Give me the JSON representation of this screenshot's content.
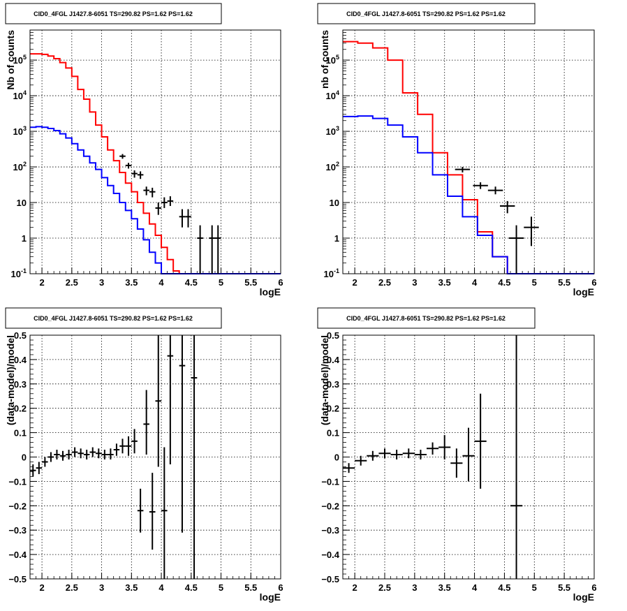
{
  "chart_data": [
    {
      "type": "line",
      "title": "CID0_4FGL J1427.8-6051 TS=290.82 PS=1.62 PS=1.62",
      "xlabel": "logE",
      "ylabel": "Nb of counts",
      "xlim": [
        1.8,
        6.0
      ],
      "ylim": [
        0.1,
        700000
      ],
      "yscale": "log",
      "grid": true,
      "x_ticks": [
        "2",
        "2.5",
        "3",
        "3.5",
        "4",
        "4.5",
        "5",
        "5.5",
        "6"
      ],
      "y_ticks": [
        {
          "value": 0.1,
          "base": "10",
          "exp": "-1"
        },
        {
          "value": 1,
          "base": "1",
          "exp": ""
        },
        {
          "value": 10,
          "base": "10",
          "exp": ""
        },
        {
          "value": 100,
          "base": "10",
          "exp": "2"
        },
        {
          "value": 1000,
          "base": "10",
          "exp": "3"
        },
        {
          "value": 10000,
          "base": "10",
          "exp": "4"
        },
        {
          "value": 100000,
          "base": "10",
          "exp": "5"
        }
      ],
      "bin_edges": [
        1.8,
        1.9,
        2.0,
        2.1,
        2.2,
        2.3,
        2.4,
        2.5,
        2.6,
        2.7,
        2.8,
        2.9,
        3.0,
        3.1,
        3.2,
        3.3,
        3.4,
        3.5,
        3.6,
        3.7,
        3.8,
        3.9,
        4.0,
        4.1,
        4.2,
        4.3,
        4.4,
        4.5,
        4.6,
        4.7,
        4.8,
        4.9,
        5.0,
        5.1,
        5.2,
        5.3,
        5.4,
        5.5,
        5.6,
        5.7,
        5.8,
        5.9,
        6.0
      ],
      "series": [
        {
          "color": "#ff0000",
          "style": "step",
          "values": [
            150000,
            150000,
            145000,
            130000,
            110000,
            85000,
            60000,
            35000,
            15000,
            8000,
            3500,
            1500,
            700,
            300,
            150,
            70,
            35,
            20,
            10,
            5,
            2.5,
            1.2,
            0.55,
            0.25,
            0.12,
            0.1,
            0.1,
            0.1,
            0.1,
            0.1,
            0.1,
            0.1,
            0.1,
            0.1,
            0.1,
            0.1,
            0.1,
            0.1,
            0.1,
            0.1,
            0.1,
            0.1
          ]
        },
        {
          "color": "#0000ff",
          "style": "step",
          "values": [
            1300,
            1350,
            1300,
            1200,
            1050,
            850,
            650,
            450,
            300,
            200,
            130,
            85,
            50,
            30,
            18,
            10,
            6,
            3.5,
            1.8,
            0.9,
            0.4,
            0.2,
            0.1,
            0.1,
            0.1,
            0.1,
            0.1,
            0.1,
            0.1,
            0.1,
            0.1,
            0.1,
            0.1,
            0.1,
            0.1,
            0.1,
            0.1,
            0.1,
            0.1,
            0.1,
            0.1,
            0.1
          ]
        }
      ],
      "data_points": [
        {
          "x": 3.35,
          "y": 200,
          "xerr": 0.05,
          "ylo": 170,
          "yhi": 230
        },
        {
          "x": 3.45,
          "y": 110,
          "xerr": 0.05,
          "ylo": 90,
          "yhi": 130
        },
        {
          "x": 3.55,
          "y": 65,
          "xerr": 0.05,
          "ylo": 50,
          "yhi": 80
        },
        {
          "x": 3.65,
          "y": 60,
          "xerr": 0.05,
          "ylo": 46,
          "yhi": 75
        },
        {
          "x": 3.75,
          "y": 22,
          "xerr": 0.05,
          "ylo": 16,
          "yhi": 28
        },
        {
          "x": 3.85,
          "y": 20,
          "xerr": 0.05,
          "ylo": 14,
          "yhi": 26
        },
        {
          "x": 3.95,
          "y": 7,
          "xerr": 0.05,
          "ylo": 4.5,
          "yhi": 10
        },
        {
          "x": 4.05,
          "y": 10,
          "xerr": 0.05,
          "ylo": 7,
          "yhi": 14
        },
        {
          "x": 4.15,
          "y": 11,
          "xerr": 0.05,
          "ylo": 8,
          "yhi": 15
        },
        {
          "x": 4.35,
          "y": 4,
          "xerr": 0.05,
          "ylo": 2,
          "yhi": 6.5
        },
        {
          "x": 4.45,
          "y": 4,
          "xerr": 0.05,
          "ylo": 2,
          "yhi": 6.5
        },
        {
          "x": 4.65,
          "y": 1,
          "xerr": 0.05,
          "ylo": 0.1,
          "yhi": 2.3
        },
        {
          "x": 4.85,
          "y": 1,
          "xerr": 0.05,
          "ylo": 0.1,
          "yhi": 2.3
        },
        {
          "x": 4.95,
          "y": 1,
          "xerr": 0.05,
          "ylo": 0.1,
          "yhi": 2.3
        }
      ]
    },
    {
      "type": "line",
      "title": "CID0_4FGL J1427.8-6051 TS=290.82 PS=1.62 PS=1.62",
      "xlabel": "logE",
      "ylabel": "nb of counts",
      "xlim": [
        1.8,
        6.0
      ],
      "ylim": [
        0.1,
        700000
      ],
      "yscale": "log",
      "grid": true,
      "x_ticks": [
        "2",
        "2.5",
        "3",
        "3.5",
        "4",
        "4.5",
        "5",
        "5.5",
        "6"
      ],
      "y_ticks": [
        {
          "value": 0.1,
          "base": "10",
          "exp": "-1"
        },
        {
          "value": 1,
          "base": "1",
          "exp": ""
        },
        {
          "value": 10,
          "base": "10",
          "exp": ""
        },
        {
          "value": 100,
          "base": "10",
          "exp": "2"
        },
        {
          "value": 1000,
          "base": "10",
          "exp": "3"
        },
        {
          "value": 10000,
          "base": "10",
          "exp": "4"
        },
        {
          "value": 100000,
          "base": "10",
          "exp": "5"
        }
      ],
      "bin_edges": [
        1.8,
        2.05,
        2.3,
        2.55,
        2.8,
        3.05,
        3.3,
        3.55,
        3.8,
        4.05,
        4.3,
        4.55,
        4.8,
        5.05,
        5.3,
        5.55,
        5.8,
        6.0
      ],
      "series": [
        {
          "color": "#ff0000",
          "style": "step",
          "values": [
            330000,
            300000,
            220000,
            100000,
            12000,
            3000,
            250,
            60,
            12,
            1.5,
            0.3,
            0.1,
            0.1,
            0.1,
            0.1,
            0.1,
            0.1
          ]
        },
        {
          "color": "#0000ff",
          "style": "step",
          "values": [
            2600,
            2700,
            2300,
            1500,
            700,
            250,
            60,
            15,
            4,
            1.2,
            0.3,
            0.1,
            0.1,
            0.1,
            0.1,
            0.1,
            0.1
          ]
        }
      ],
      "data_points": [
        {
          "x": 3.8,
          "y": 85,
          "xerr": 0.125,
          "ylo": 70,
          "yhi": 100
        },
        {
          "x": 4.1,
          "y": 30,
          "xerr": 0.125,
          "ylo": 24,
          "yhi": 37
        },
        {
          "x": 4.35,
          "y": 22,
          "xerr": 0.125,
          "ylo": 17,
          "yhi": 28
        },
        {
          "x": 4.55,
          "y": 8,
          "xerr": 0.125,
          "ylo": 5,
          "yhi": 11
        },
        {
          "x": 4.7,
          "y": 1,
          "xerr": 0.125,
          "ylo": 0.1,
          "yhi": 2.3
        },
        {
          "x": 4.95,
          "y": 2,
          "xerr": 0.125,
          "ylo": 0.6,
          "yhi": 4
        }
      ]
    },
    {
      "type": "scatter",
      "title": "CID0_4FGL J1427.8-6051 TS=290.82 PS=1.62 PS=1.62",
      "xlabel": "logE",
      "ylabel": "(data-model)/model",
      "xlim": [
        1.8,
        6.0
      ],
      "ylim": [
        -0.5,
        0.5
      ],
      "grid": true,
      "x_ticks": [
        "2",
        "2.5",
        "3",
        "3.5",
        "4",
        "4.5",
        "5",
        "5.5",
        "6"
      ],
      "y_ticks": [
        "0.5",
        "0.4",
        "0.3",
        "0.2",
        "0.1",
        "0",
        "−0.1",
        "−0.2",
        "−0.3",
        "−0.4",
        "−0.5"
      ],
      "y_tick_values": [
        0.5,
        0.4,
        0.3,
        0.2,
        0.1,
        0,
        -0.1,
        -0.2,
        -0.3,
        -0.4,
        -0.5
      ],
      "data_points": [
        {
          "x": 1.85,
          "y": -0.055,
          "xerr": 0.05,
          "ylo": -0.08,
          "yhi": -0.03
        },
        {
          "x": 1.95,
          "y": -0.045,
          "xerr": 0.05,
          "ylo": -0.07,
          "yhi": -0.02
        },
        {
          "x": 2.05,
          "y": -0.02,
          "xerr": 0.05,
          "ylo": -0.04,
          "yhi": 0.0
        },
        {
          "x": 2.15,
          "y": 0.0,
          "xerr": 0.05,
          "ylo": -0.02,
          "yhi": 0.02
        },
        {
          "x": 2.25,
          "y": 0.01,
          "xerr": 0.05,
          "ylo": -0.01,
          "yhi": 0.03
        },
        {
          "x": 2.35,
          "y": 0.005,
          "xerr": 0.05,
          "ylo": -0.015,
          "yhi": 0.025
        },
        {
          "x": 2.45,
          "y": 0.01,
          "xerr": 0.05,
          "ylo": -0.01,
          "yhi": 0.03
        },
        {
          "x": 2.55,
          "y": 0.02,
          "xerr": 0.05,
          "ylo": 0.0,
          "yhi": 0.04
        },
        {
          "x": 2.65,
          "y": 0.015,
          "xerr": 0.05,
          "ylo": -0.005,
          "yhi": 0.035
        },
        {
          "x": 2.75,
          "y": 0.01,
          "xerr": 0.05,
          "ylo": -0.01,
          "yhi": 0.03
        },
        {
          "x": 2.85,
          "y": 0.02,
          "xerr": 0.05,
          "ylo": 0.0,
          "yhi": 0.04
        },
        {
          "x": 2.95,
          "y": 0.015,
          "xerr": 0.05,
          "ylo": -0.005,
          "yhi": 0.035
        },
        {
          "x": 3.05,
          "y": 0.01,
          "xerr": 0.05,
          "ylo": -0.01,
          "yhi": 0.03
        },
        {
          "x": 3.15,
          "y": 0.01,
          "xerr": 0.05,
          "ylo": -0.01,
          "yhi": 0.035
        },
        {
          "x": 3.25,
          "y": 0.03,
          "xerr": 0.05,
          "ylo": 0.005,
          "yhi": 0.055
        },
        {
          "x": 3.35,
          "y": 0.045,
          "xerr": 0.05,
          "ylo": 0.015,
          "yhi": 0.075
        },
        {
          "x": 3.45,
          "y": 0.045,
          "xerr": 0.05,
          "ylo": 0.005,
          "yhi": 0.085
        },
        {
          "x": 3.55,
          "y": 0.065,
          "xerr": 0.05,
          "ylo": 0.015,
          "yhi": 0.115
        },
        {
          "x": 3.65,
          "y": -0.22,
          "xerr": 0.05,
          "ylo": -0.31,
          "yhi": -0.13
        },
        {
          "x": 3.75,
          "y": 0.135,
          "xerr": 0.05,
          "ylo": 0.01,
          "yhi": 0.275
        },
        {
          "x": 3.85,
          "y": -0.225,
          "xerr": 0.05,
          "ylo": -0.38,
          "yhi": -0.065
        },
        {
          "x": 3.95,
          "y": 0.23,
          "xerr": 0.05,
          "ylo": -0.04,
          "yhi": 0.5
        },
        {
          "x": 4.05,
          "y": -0.22,
          "xerr": 0.05,
          "ylo": -0.5,
          "yhi": 0.04
        },
        {
          "x": 4.15,
          "y": 0.415,
          "xerr": 0.05,
          "ylo": -0.03,
          "yhi": 0.5
        },
        {
          "x": 4.35,
          "y": 0.375,
          "xerr": 0.05,
          "ylo": -0.31,
          "yhi": 0.5
        },
        {
          "x": 4.55,
          "y": 0.325,
          "xerr": 0.05,
          "ylo": -0.5,
          "yhi": 0.5
        }
      ]
    },
    {
      "type": "scatter",
      "title": "CID0_4FGL J1427.8-6051 TS=290.82 PS=1.62 PS=1.62",
      "xlabel": "logE",
      "ylabel": "(data-model)/model",
      "xlim": [
        1.8,
        6.0
      ],
      "ylim": [
        -0.5,
        0.5
      ],
      "grid": true,
      "x_ticks": [
        "2",
        "2.5",
        "3",
        "3.5",
        "4",
        "4.5",
        "5",
        "5.5",
        "6"
      ],
      "y_ticks": [
        "0.5",
        "0.4",
        "0.3",
        "0.2",
        "0.1",
        "0",
        "−0.1",
        "−0.2",
        "−0.3",
        "−0.4",
        "−0.5"
      ],
      "y_tick_values": [
        0.5,
        0.4,
        0.3,
        0.2,
        0.1,
        0,
        -0.1,
        -0.2,
        -0.3,
        -0.4,
        -0.5
      ],
      "data_points": [
        {
          "x": 1.9,
          "y": -0.045,
          "xerr": 0.1,
          "ylo": -0.065,
          "yhi": -0.025
        },
        {
          "x": 2.1,
          "y": -0.015,
          "xerr": 0.1,
          "ylo": -0.035,
          "yhi": 0.005
        },
        {
          "x": 2.3,
          "y": 0.005,
          "xerr": 0.1,
          "ylo": -0.015,
          "yhi": 0.025
        },
        {
          "x": 2.5,
          "y": 0.015,
          "xerr": 0.1,
          "ylo": -0.005,
          "yhi": 0.035
        },
        {
          "x": 2.7,
          "y": 0.01,
          "xerr": 0.1,
          "ylo": -0.01,
          "yhi": 0.03
        },
        {
          "x": 2.9,
          "y": 0.015,
          "xerr": 0.1,
          "ylo": -0.005,
          "yhi": 0.035
        },
        {
          "x": 3.1,
          "y": 0.01,
          "xerr": 0.1,
          "ylo": -0.01,
          "yhi": 0.03
        },
        {
          "x": 3.3,
          "y": 0.035,
          "xerr": 0.1,
          "ylo": 0.01,
          "yhi": 0.06
        },
        {
          "x": 3.5,
          "y": 0.04,
          "xerr": 0.1,
          "ylo": -0.01,
          "yhi": 0.09
        },
        {
          "x": 3.7,
          "y": -0.025,
          "xerr": 0.1,
          "ylo": -0.085,
          "yhi": 0.035
        },
        {
          "x": 3.9,
          "y": 0.005,
          "xerr": 0.1,
          "ylo": -0.1,
          "yhi": 0.12
        },
        {
          "x": 4.1,
          "y": 0.065,
          "xerr": 0.1,
          "ylo": -0.13,
          "yhi": 0.26
        },
        {
          "x": 4.7,
          "y": -0.2,
          "xerr": 0.1,
          "ylo": -0.5,
          "yhi": 0.5
        }
      ]
    }
  ]
}
